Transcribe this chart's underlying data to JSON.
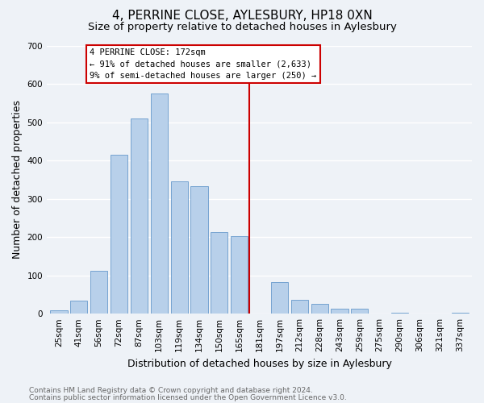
{
  "title": "4, PERRINE CLOSE, AYLESBURY, HP18 0XN",
  "subtitle": "Size of property relative to detached houses in Aylesbury",
  "xlabel": "Distribution of detached houses by size in Aylesbury",
  "ylabel": "Number of detached properties",
  "bar_labels": [
    "25sqm",
    "41sqm",
    "56sqm",
    "72sqm",
    "87sqm",
    "103sqm",
    "119sqm",
    "134sqm",
    "150sqm",
    "165sqm",
    "181sqm",
    "197sqm",
    "212sqm",
    "228sqm",
    "243sqm",
    "259sqm",
    "275sqm",
    "290sqm",
    "306sqm",
    "321sqm",
    "337sqm"
  ],
  "bar_values": [
    8,
    35,
    112,
    415,
    510,
    575,
    345,
    333,
    212,
    202,
    0,
    83,
    37,
    25,
    12,
    13,
    0,
    2,
    0,
    0,
    2
  ],
  "bar_color": "#b8d0ea",
  "bar_edge_color": "#6699cc",
  "vline_x_idx": 9.5,
  "vline_color": "#cc0000",
  "ann_line1": "4 PERRINE CLOSE: 172sqm",
  "ann_line2": "← 91% of detached houses are smaller (2,633)",
  "ann_line3": "9% of semi-detached houses are larger (250) →",
  "ylim": [
    0,
    700
  ],
  "yticks": [
    0,
    100,
    200,
    300,
    400,
    500,
    600,
    700
  ],
  "footer_line1": "Contains HM Land Registry data © Crown copyright and database right 2024.",
  "footer_line2": "Contains public sector information licensed under the Open Government Licence v3.0.",
  "bg_color": "#eef2f7",
  "grid_color": "#ffffff",
  "title_fontsize": 11,
  "subtitle_fontsize": 9.5,
  "axis_label_fontsize": 9,
  "tick_fontsize": 7.5,
  "footer_fontsize": 6.5
}
